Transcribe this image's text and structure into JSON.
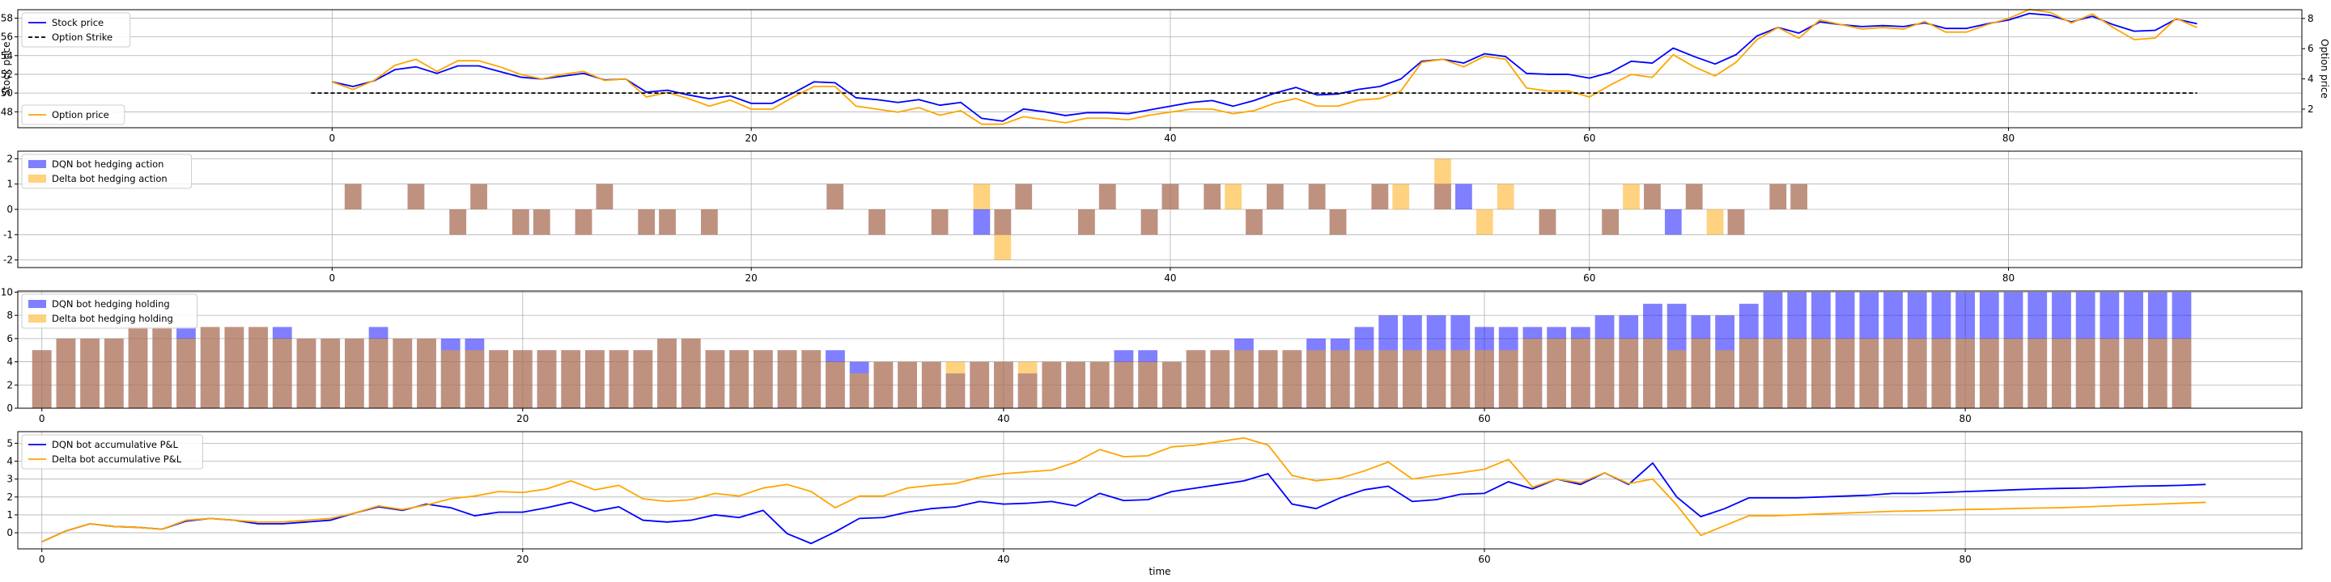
{
  "chart_data": [
    {
      "type": "line",
      "xlim": [
        -15,
        94
      ],
      "ylim": [
        46.3,
        58.9
      ],
      "y2lim": [
        0.77,
        8.58
      ],
      "ylabel": "Stock price",
      "y2label": "Option price",
      "xticks": [
        0,
        20,
        40,
        60,
        80
      ],
      "yticks": [
        48,
        50,
        52,
        54,
        56,
        58
      ],
      "y2ticks": [
        2,
        4,
        6,
        8
      ],
      "grid": true,
      "legend_left_top": [
        "Stock price",
        "Option Strike"
      ],
      "legend_left_bottom": [
        "Option price"
      ],
      "series": [
        {
          "name": "Stock price",
          "color": "#0000ff",
          "axis": "left",
          "x_start": 0,
          "values": [
            51.2,
            50.7,
            51.3,
            52.5,
            52.8,
            52.1,
            52.9,
            52.9,
            52.3,
            51.7,
            51.5,
            51.8,
            52.1,
            51.4,
            51.5,
            50.1,
            50.3,
            49.8,
            49.4,
            49.7,
            48.9,
            48.9,
            50.0,
            51.2,
            51.1,
            49.5,
            49.3,
            49.0,
            49.3,
            48.7,
            49.0,
            47.3,
            47.0,
            48.3,
            48.0,
            47.6,
            47.9,
            47.9,
            47.8,
            48.2,
            48.6,
            49.0,
            49.2,
            48.6,
            49.2,
            50.0,
            50.6,
            49.8,
            49.9,
            50.4,
            50.7,
            51.5,
            53.4,
            53.6,
            53.2,
            54.2,
            53.9,
            52.1,
            52.0,
            52.0,
            51.6,
            52.2,
            53.4,
            53.2,
            54.8,
            53.9,
            53.1,
            54.1,
            56.1,
            57.0,
            56.4,
            57.6,
            57.3,
            57.1,
            57.2,
            57.1,
            57.5,
            56.9,
            56.9,
            57.4,
            57.8,
            58.5,
            58.3,
            57.6,
            58.2,
            57.3,
            56.6,
            56.7,
            57.9,
            57.4
          ]
        },
        {
          "name": "Option price",
          "color": "#ffa500",
          "axis": "right",
          "x_start": 0,
          "values": [
            3.8,
            3.3,
            3.9,
            4.9,
            5.3,
            4.5,
            5.2,
            5.2,
            4.8,
            4.3,
            4.0,
            4.3,
            4.5,
            3.9,
            4.0,
            2.8,
            3.1,
            2.7,
            2.2,
            2.6,
            2.0,
            2.0,
            2.8,
            3.5,
            3.5,
            2.2,
            2.0,
            1.8,
            2.1,
            1.6,
            1.9,
            1.0,
            1.0,
            1.5,
            1.3,
            1.1,
            1.4,
            1.4,
            1.3,
            1.6,
            1.8,
            2.0,
            2.0,
            1.7,
            1.9,
            2.4,
            2.7,
            2.2,
            2.2,
            2.6,
            2.7,
            3.2,
            5.1,
            5.3,
            4.8,
            5.5,
            5.3,
            3.4,
            3.2,
            3.2,
            2.8,
            3.6,
            4.3,
            4.1,
            5.6,
            4.8,
            4.2,
            5.1,
            6.6,
            7.4,
            6.7,
            7.9,
            7.6,
            7.3,
            7.4,
            7.3,
            7.8,
            7.1,
            7.1,
            7.6,
            8.0,
            8.6,
            8.4,
            7.7,
            8.3,
            7.4,
            6.6,
            6.7,
            8.0,
            7.4
          ]
        },
        {
          "name": "Option Strike",
          "color": "#000000",
          "axis": "left",
          "dashed": true,
          "x_start": -1,
          "x_end": 89,
          "constant": 50
        }
      ]
    },
    {
      "type": "bar",
      "xlim": [
        -15,
        94
      ],
      "ylim": [
        -2.3,
        2.3
      ],
      "xticks": [
        0,
        20,
        40,
        60,
        80
      ],
      "yticks": [
        -2,
        -1,
        0,
        1,
        2
      ],
      "grid": true,
      "legend": "top-left",
      "series": [
        {
          "name": "DQN bot hedging action",
          "color": "#0000ff",
          "opacity": 0.5,
          "points": [
            [
              1,
              1
            ],
            [
              4,
              1
            ],
            [
              6,
              -1
            ],
            [
              7,
              1
            ],
            [
              9,
              -1
            ],
            [
              10,
              -1
            ],
            [
              12,
              -1
            ],
            [
              13,
              1
            ],
            [
              15,
              -1
            ],
            [
              16,
              -1
            ],
            [
              18,
              -1
            ],
            [
              24,
              1
            ],
            [
              26,
              -1
            ],
            [
              29,
              -1
            ],
            [
              31,
              -1
            ],
            [
              32,
              -1
            ],
            [
              33,
              1
            ],
            [
              36,
              -1
            ],
            [
              37,
              1
            ],
            [
              39,
              -1
            ],
            [
              40,
              1
            ],
            [
              42,
              1
            ],
            [
              44,
              -1
            ],
            [
              45,
              1
            ],
            [
              47,
              1
            ],
            [
              48,
              -1
            ],
            [
              50,
              1
            ],
            [
              53,
              1
            ],
            [
              54,
              1
            ],
            [
              58,
              -1
            ],
            [
              61,
              -1
            ],
            [
              63,
              1
            ],
            [
              64,
              -1
            ],
            [
              65,
              1
            ],
            [
              67,
              -1
            ],
            [
              69,
              1
            ],
            [
              70,
              1
            ]
          ]
        },
        {
          "name": "Delta bot hedging action",
          "color": "#ffa500",
          "opacity": 0.5,
          "points": [
            [
              1,
              1
            ],
            [
              4,
              1
            ],
            [
              6,
              -1
            ],
            [
              7,
              1
            ],
            [
              9,
              -1
            ],
            [
              10,
              -1
            ],
            [
              12,
              -1
            ],
            [
              13,
              1
            ],
            [
              15,
              -1
            ],
            [
              16,
              -1
            ],
            [
              18,
              -1
            ],
            [
              24,
              1
            ],
            [
              26,
              -1
            ],
            [
              29,
              -1
            ],
            [
              31,
              1
            ],
            [
              32,
              -2
            ],
            [
              33,
              1
            ],
            [
              36,
              -1
            ],
            [
              37,
              1
            ],
            [
              39,
              -1
            ],
            [
              40,
              1
            ],
            [
              42,
              1
            ],
            [
              43,
              1
            ],
            [
              44,
              -1
            ],
            [
              45,
              1
            ],
            [
              47,
              1
            ],
            [
              48,
              -1
            ],
            [
              50,
              1
            ],
            [
              51,
              1
            ],
            [
              53,
              2
            ],
            [
              55,
              -1
            ],
            [
              56,
              1
            ],
            [
              58,
              -1
            ],
            [
              61,
              -1
            ],
            [
              62,
              1
            ],
            [
              63,
              1
            ],
            [
              65,
              1
            ],
            [
              66,
              -1
            ],
            [
              67,
              -1
            ],
            [
              69,
              1
            ],
            [
              70,
              1
            ]
          ]
        }
      ]
    },
    {
      "type": "bar",
      "xlim": [
        -1,
        94
      ],
      "ylim": [
        0,
        10.1
      ],
      "xticks": [
        0,
        20,
        40,
        60,
        80
      ],
      "yticks": [
        0,
        2,
        4,
        6,
        8,
        10
      ],
      "grid": true,
      "legend": "top-left",
      "series": [
        {
          "name": "DQN bot hedging holding",
          "color": "#0000ff",
          "opacity": 0.5,
          "x_start": 0,
          "values": [
            5,
            6,
            6,
            6,
            7,
            7,
            7,
            7,
            7,
            7,
            7,
            6,
            6,
            6,
            7,
            6,
            6,
            6,
            6,
            5,
            5,
            5,
            5,
            5,
            5,
            5,
            6,
            6,
            5,
            5,
            5,
            5,
            5,
            5,
            4,
            4,
            4,
            4,
            3,
            4,
            4,
            3,
            4,
            4,
            4,
            5,
            5,
            4,
            5,
            5,
            6,
            5,
            5,
            6,
            6,
            7,
            8,
            8,
            8,
            8,
            7,
            7,
            7,
            7,
            7,
            8,
            8,
            9,
            9,
            8,
            8,
            9,
            10,
            10,
            10,
            10,
            10,
            10,
            10,
            10,
            10,
            10,
            10,
            10,
            10,
            10,
            10,
            10,
            10,
            10
          ]
        },
        {
          "name": "Delta bot hedging holding",
          "color": "#ffa500",
          "opacity": 0.5,
          "x_start": 0,
          "values": [
            5,
            6,
            6,
            6,
            7,
            7,
            6,
            7,
            7,
            7,
            6,
            6,
            6,
            6,
            6,
            6,
            6,
            5,
            5,
            5,
            5,
            5,
            5,
            5,
            5,
            5,
            6,
            6,
            5,
            5,
            5,
            5,
            5,
            4,
            3,
            4,
            4,
            4,
            4,
            4,
            4,
            4,
            4,
            4,
            4,
            4,
            4,
            4,
            5,
            5,
            5,
            5,
            5,
            5,
            5,
            5,
            5,
            5,
            5,
            5,
            5,
            5,
            6,
            6,
            6,
            6,
            6,
            6,
            5,
            6,
            5,
            6,
            6,
            6,
            6,
            6,
            6,
            6,
            6,
            6,
            6,
            6,
            6,
            6,
            6,
            6,
            6,
            6,
            6,
            6
          ]
        }
      ]
    },
    {
      "type": "line",
      "xlim": [
        -1,
        94
      ],
      "ylim": [
        -0.9,
        5.65
      ],
      "xlabel": "time",
      "xticks": [
        0,
        20,
        40,
        60,
        80
      ],
      "yticks": [
        0,
        1,
        2,
        3,
        4,
        5
      ],
      "grid": true,
      "legend": "top-left",
      "series": [
        {
          "name": "DQN bot accumulative P&L",
          "color": "#0000ff",
          "x_start": 0,
          "values": [
            -0.5,
            0.1,
            0.5,
            0.35,
            0.3,
            0.2,
            0.65,
            0.8,
            0.7,
            0.5,
            0.5,
            0.6,
            0.7,
            1.1,
            1.45,
            1.25,
            1.6,
            1.4,
            0.95,
            1.15,
            1.15,
            1.4,
            1.7,
            1.2,
            1.45,
            0.7,
            0.6,
            0.7,
            1.0,
            0.85,
            1.25,
            -0.05,
            -0.6,
            0.05,
            0.8,
            0.85,
            1.15,
            1.35,
            1.45,
            1.75,
            1.6,
            1.65,
            1.75,
            1.5,
            2.2,
            1.8,
            1.85,
            2.3,
            2.5,
            2.7,
            2.9,
            3.3,
            1.6,
            1.35,
            1.95,
            2.4,
            2.6,
            1.75,
            1.85,
            2.15,
            2.2,
            2.85,
            2.45,
            3.0,
            2.7,
            3.35,
            2.7,
            3.9,
            2.0,
            0.9,
            1.35,
            1.95,
            1.95,
            1.95,
            2.0,
            2.05,
            2.1,
            2.2,
            2.2,
            2.25,
            2.3,
            2.35,
            2.4,
            2.45,
            2.48,
            2.5,
            2.55,
            2.6,
            2.62,
            2.65,
            2.7
          ]
        },
        {
          "name": "Delta bot accumulative P&L",
          "color": "#ffa500",
          "x_start": 0,
          "values": [
            -0.5,
            0.1,
            0.5,
            0.35,
            0.3,
            0.2,
            0.7,
            0.8,
            0.7,
            0.6,
            0.6,
            0.7,
            0.8,
            1.1,
            1.5,
            1.3,
            1.55,
            1.9,
            2.05,
            2.3,
            2.25,
            2.45,
            2.9,
            2.4,
            2.65,
            1.9,
            1.75,
            1.85,
            2.2,
            2.05,
            2.5,
            2.7,
            2.3,
            1.4,
            2.05,
            2.05,
            2.5,
            2.65,
            2.75,
            3.1,
            3.3,
            3.4,
            3.5,
            3.95,
            4.65,
            4.25,
            4.3,
            4.8,
            4.9,
            5.1,
            5.3,
            4.9,
            3.2,
            2.9,
            3.05,
            3.45,
            3.95,
            3.0,
            3.2,
            3.35,
            3.55,
            4.1,
            2.55,
            3.0,
            2.8,
            3.35,
            2.75,
            3.0,
            1.55,
            -0.15,
            0.4,
            0.95,
            0.95,
            1.0,
            1.05,
            1.1,
            1.15,
            1.2,
            1.22,
            1.25,
            1.3,
            1.32,
            1.35,
            1.38,
            1.4,
            1.45,
            1.5,
            1.55,
            1.6,
            1.65,
            1.7
          ]
        }
      ]
    }
  ]
}
